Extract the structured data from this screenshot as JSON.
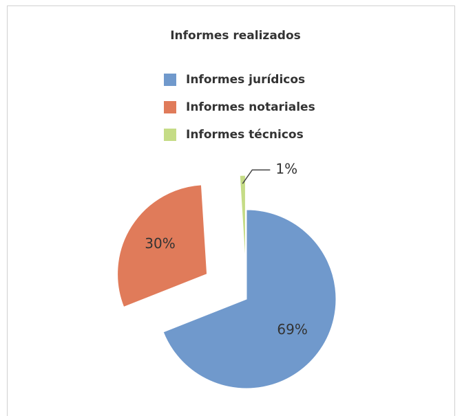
{
  "chart_data": {
    "type": "pie",
    "title": "Informes realizados",
    "categories": [
      "Informes jurídicos",
      "Informes notariales",
      "Informes técnicos"
    ],
    "values": [
      69,
      30,
      1
    ],
    "value_labels": [
      "69%",
      "30%",
      "1%"
    ],
    "colors": [
      "#7099cc",
      "#e07b5a",
      "#c5dc86"
    ],
    "legend": "top"
  }
}
